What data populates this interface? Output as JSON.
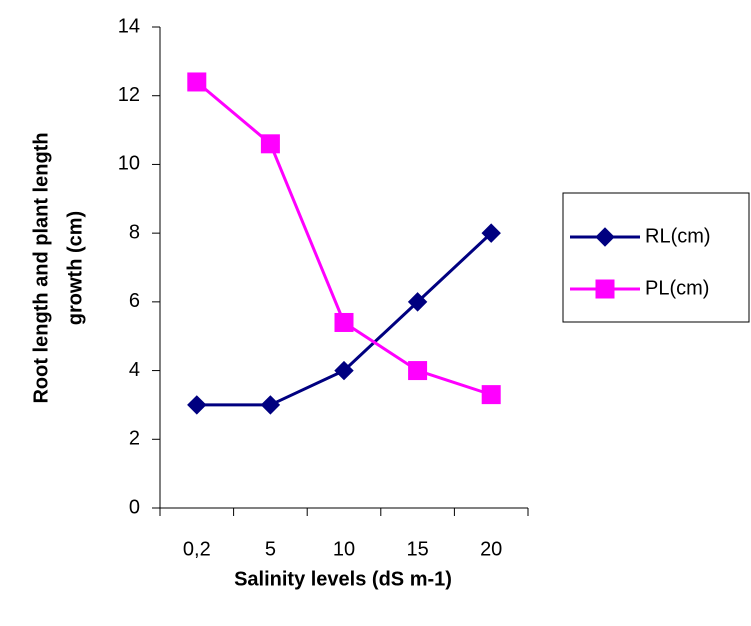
{
  "chart_data": {
    "type": "line",
    "xlabel": "Salinity levels (dS m-1)",
    "ylabel": [
      "Root length and plant length",
      "growth (cm)"
    ],
    "categories": [
      "0,2",
      "5",
      "10",
      "15",
      "20"
    ],
    "series": [
      {
        "name": "RL(cm)",
        "color": "#000080",
        "marker": "diamond",
        "values": [
          3,
          3,
          4,
          6,
          8
        ]
      },
      {
        "name": "PL(cm)",
        "color": "#ff00ff",
        "marker": "square",
        "values": [
          12.4,
          10.6,
          5.4,
          4,
          3.3
        ]
      }
    ],
    "ylim": [
      0,
      14
    ],
    "yticks": [
      0,
      2,
      4,
      6,
      8,
      10,
      12,
      14
    ],
    "grid": false,
    "legend": "right"
  }
}
